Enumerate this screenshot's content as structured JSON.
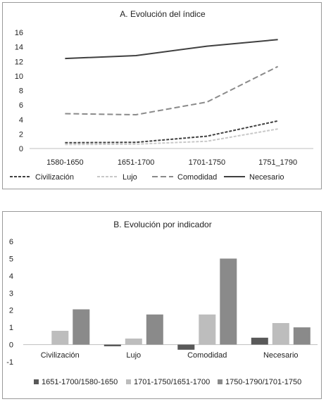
{
  "chart_data": [
    {
      "type": "line",
      "title": "A. Evolución del índice",
      "categories": [
        "1580-1650",
        "1651-1700",
        "1701-1750",
        "1751_1790"
      ],
      "ylim": [
        0,
        16
      ],
      "yticks": [
        "0",
        "2",
        "4",
        "6",
        "8",
        "10",
        "12",
        "14",
        "16"
      ],
      "grid": false,
      "legend_position": "bottom",
      "series": [
        {
          "name": "Civilización",
          "values": [
            0.8,
            0.85,
            1.7,
            3.8
          ],
          "color": "#404040",
          "dash": "short-dash"
        },
        {
          "name": "Lujo",
          "values": [
            0.55,
            0.6,
            1.0,
            2.7
          ],
          "color": "#c8c8c8",
          "dash": "short-dash"
        },
        {
          "name": "Comodidad",
          "values": [
            4.8,
            4.65,
            6.4,
            11.3
          ],
          "color": "#8a8a8a",
          "dash": "long-dash"
        },
        {
          "name": "Necesario",
          "values": [
            12.4,
            12.8,
            14.1,
            15.0
          ],
          "color": "#404040",
          "dash": "solid"
        }
      ]
    },
    {
      "type": "bar",
      "title": "B. Evolución por indicador",
      "categories": [
        "Civilización",
        "Lujo",
        "Comodidad",
        "Necesario"
      ],
      "ylim": [
        -1,
        6
      ],
      "yticks": [
        "-1",
        "0",
        "1",
        "2",
        "3",
        "4",
        "5",
        "6"
      ],
      "grid": false,
      "legend_position": "bottom",
      "series": [
        {
          "name": "1651-1700/1580-1650",
          "values": [
            0.0,
            -0.1,
            -0.3,
            0.4
          ],
          "color": "#595959"
        },
        {
          "name": "1701-1750/1651-1700",
          "values": [
            0.8,
            0.35,
            1.75,
            1.25
          ],
          "color": "#bdbdbd"
        },
        {
          "name": "1750-1790/1701-1750",
          "values": [
            2.05,
            1.75,
            5.0,
            1.0
          ],
          "color": "#8a8a8a"
        }
      ]
    }
  ]
}
